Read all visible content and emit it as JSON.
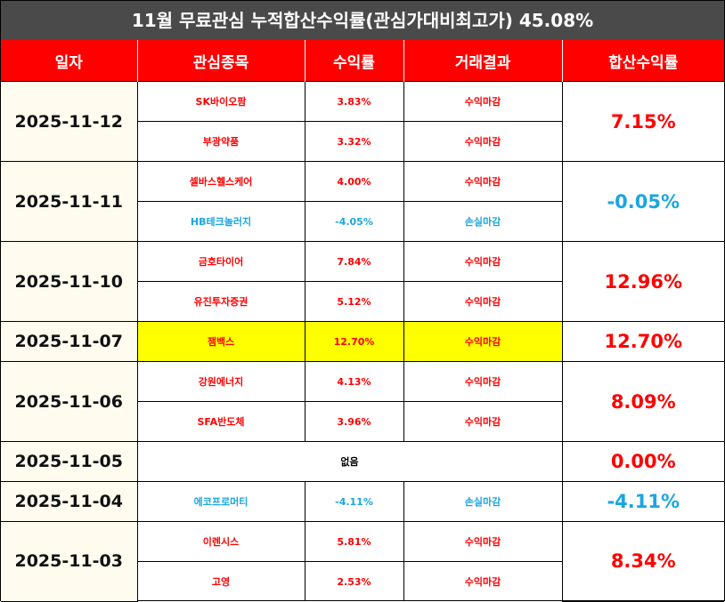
{
  "title": "11월 무료관심 누적합산수익률(관심가대비최고가) 45.08%",
  "headers": [
    "일자",
    "관심종목",
    "수익률",
    "거래결과",
    "합산수익률"
  ],
  "colors": {
    "header_bg": "#ff0000",
    "title_bg": "#4a4a4a",
    "profit": "#ff0000",
    "loss": "#1aa6e0",
    "highlight": "#ffff00",
    "date_bg": "#fffbef"
  },
  "groups": [
    {
      "date": "2025-11-12",
      "total": "7.15%",
      "rows": [
        {
          "stock": "SK바이오팜",
          "rate": "3.83%",
          "result": "수익마감"
        },
        {
          "stock": "부광약품",
          "rate": "3.32%",
          "result": "수익마감"
        }
      ]
    },
    {
      "date": "2025-11-11",
      "total": "-0.05%",
      "rows": [
        {
          "stock": "셀바스헬스케어",
          "rate": "4.00%",
          "result": "수익마감"
        },
        {
          "stock": "HB테크놀러지",
          "rate": "-4.05%",
          "result": "손실마감"
        }
      ]
    },
    {
      "date": "2025-11-10",
      "total": "12.96%",
      "rows": [
        {
          "stock": "금호타이어",
          "rate": "7.84%",
          "result": "수익마감"
        },
        {
          "stock": "유진투자증권",
          "rate": "5.12%",
          "result": "수익마감"
        }
      ]
    },
    {
      "date": "2025-11-07",
      "total": "12.70%",
      "rows": [
        {
          "stock": "잼백스",
          "rate": "12.70%",
          "result": "수익마감"
        }
      ]
    },
    {
      "date": "2025-11-06",
      "total": "8.09%",
      "rows": [
        {
          "stock": "강원에너지",
          "rate": "4.13%",
          "result": "수익마감"
        },
        {
          "stock": "SFA반도체",
          "rate": "3.96%",
          "result": "수익마감"
        }
      ]
    },
    {
      "date": "2025-11-05",
      "total": "0.00%",
      "none_text": "없음"
    },
    {
      "date": "2025-11-04",
      "total": "-4.11%",
      "rows": [
        {
          "stock": "에코프로머티",
          "rate": "-4.11%",
          "result": "손실마감"
        }
      ]
    },
    {
      "date": "2025-11-03",
      "total": "8.34%",
      "rows": [
        {
          "stock": "이렌시스",
          "rate": "5.81%",
          "result": "수익마감"
        },
        {
          "stock": "고영",
          "rate": "2.53%",
          "result": "수익마감"
        }
      ]
    }
  ]
}
